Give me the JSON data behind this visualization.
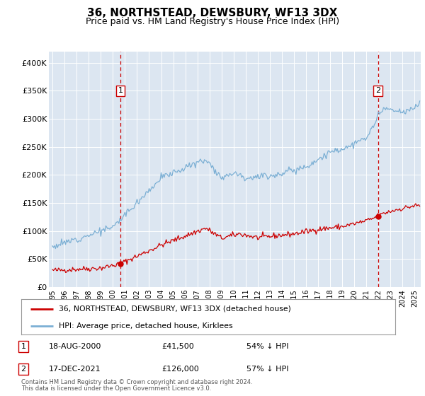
{
  "title": "36, NORTHSTEAD, DEWSBURY, WF13 3DX",
  "subtitle": "Price paid vs. HM Land Registry's House Price Index (HPI)",
  "title_fontsize": 11,
  "subtitle_fontsize": 9,
  "plot_bg_color": "#dce6f1",
  "ylim": [
    0,
    420000
  ],
  "yticks": [
    0,
    50000,
    100000,
    150000,
    200000,
    250000,
    300000,
    350000,
    400000
  ],
  "ytick_labels": [
    "£0",
    "£50K",
    "£100K",
    "£150K",
    "£200K",
    "£250K",
    "£300K",
    "£350K",
    "£400K"
  ],
  "xlim_start": 1994.7,
  "xlim_end": 2025.5,
  "sale1_x": 2000.62,
  "sale1_price": 41500,
  "sale1_label": "18-AUG-2000",
  "sale1_value_label": "£41,500",
  "sale1_hpi_label": "54% ↓ HPI",
  "sale2_x": 2021.96,
  "sale2_price": 126000,
  "sale2_label": "17-DEC-2021",
  "sale2_value_label": "£126,000",
  "sale2_hpi_label": "57% ↓ HPI",
  "red_color": "#cc0000",
  "blue_color": "#7bafd4",
  "legend1_label": "36, NORTHSTEAD, DEWSBURY, WF13 3DX (detached house)",
  "legend2_label": "HPI: Average price, detached house, Kirklees",
  "footer1": "Contains HM Land Registry data © Crown copyright and database right 2024.",
  "footer2": "This data is licensed under the Open Government Licence v3.0."
}
